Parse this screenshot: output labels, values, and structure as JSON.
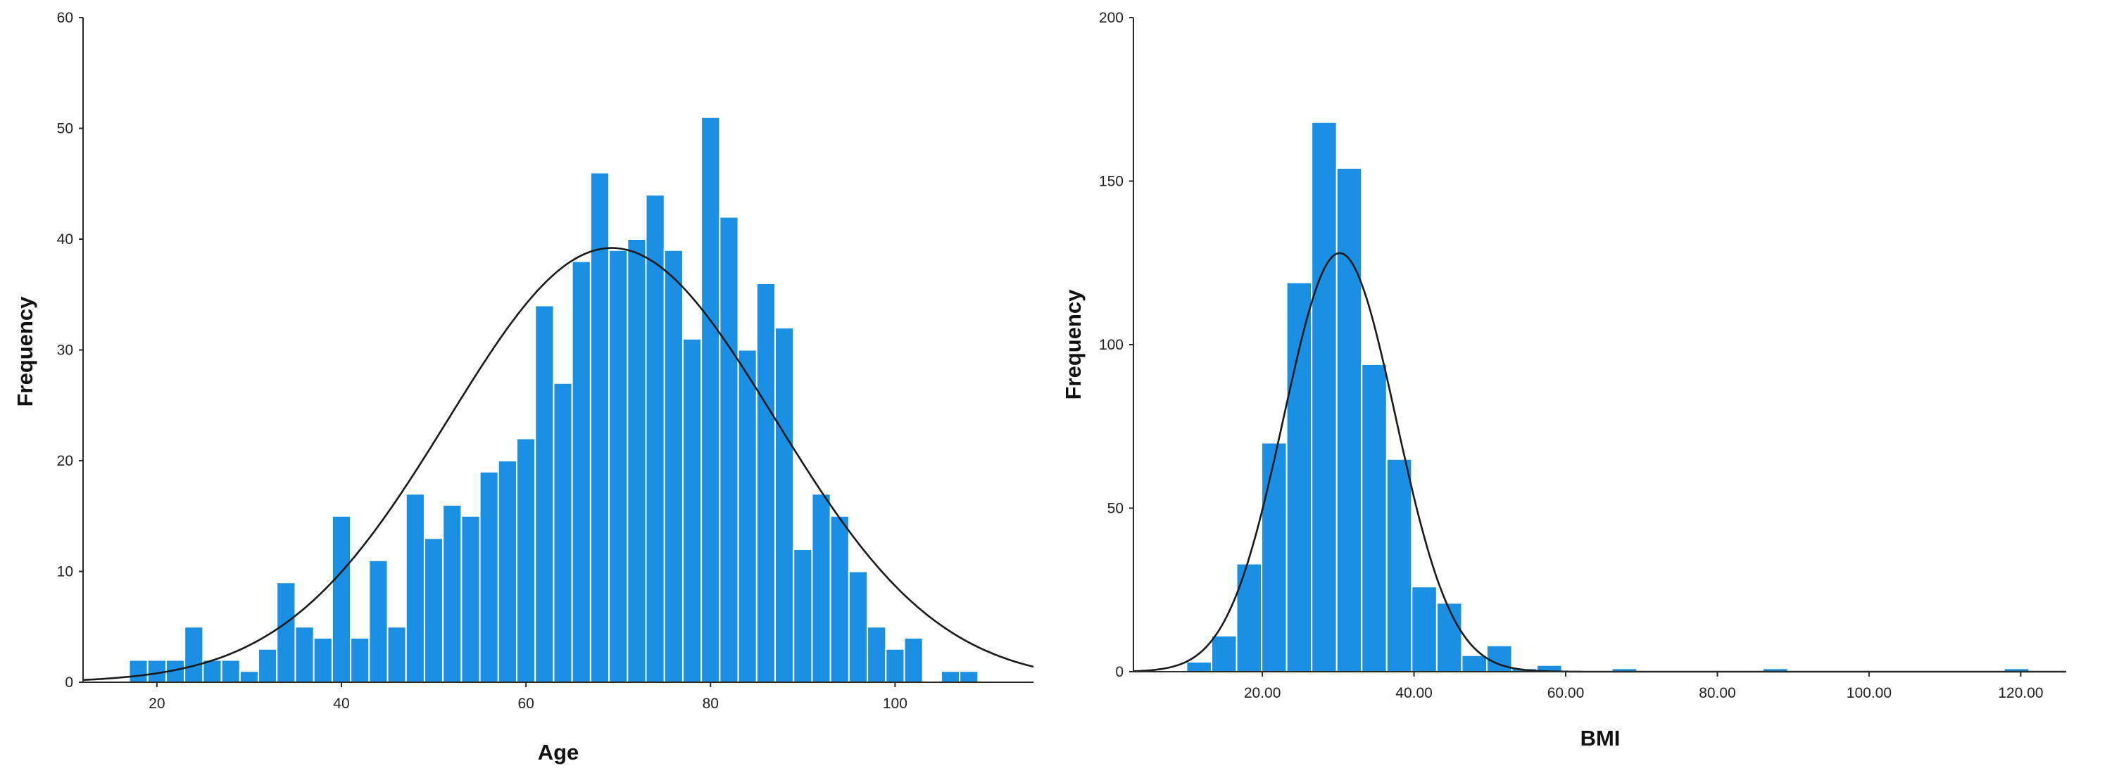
{
  "colors": {
    "bar": "#1a8fe3",
    "curve": "#1a1a1a",
    "axis": "#2b2b2b"
  },
  "chart_data": [
    {
      "type": "bar",
      "xlabel": "Age",
      "ylabel": "Frequency",
      "xlim": [
        12,
        115
      ],
      "ylim": [
        0,
        60
      ],
      "x_ticks": [
        20,
        40,
        60,
        80,
        100
      ],
      "x_tick_labels": [
        "20",
        "40",
        "60",
        "80",
        "100"
      ],
      "y_ticks": [
        0,
        10,
        20,
        30,
        40,
        50,
        60
      ],
      "y_tick_labels": [
        "0",
        "10",
        "20",
        "30",
        "40",
        "50",
        "60"
      ],
      "bin_width": 2,
      "bins": [
        {
          "start": 17,
          "count": 2
        },
        {
          "start": 19,
          "count": 2
        },
        {
          "start": 21,
          "count": 2
        },
        {
          "start": 23,
          "count": 5
        },
        {
          "start": 25,
          "count": 2
        },
        {
          "start": 27,
          "count": 2
        },
        {
          "start": 29,
          "count": 1
        },
        {
          "start": 31,
          "count": 3
        },
        {
          "start": 33,
          "count": 9
        },
        {
          "start": 35,
          "count": 5
        },
        {
          "start": 37,
          "count": 4
        },
        {
          "start": 39,
          "count": 15
        },
        {
          "start": 41,
          "count": 4
        },
        {
          "start": 43,
          "count": 11
        },
        {
          "start": 45,
          "count": 5
        },
        {
          "start": 47,
          "count": 17
        },
        {
          "start": 49,
          "count": 13
        },
        {
          "start": 51,
          "count": 16
        },
        {
          "start": 53,
          "count": 15
        },
        {
          "start": 55,
          "count": 19
        },
        {
          "start": 57,
          "count": 20
        },
        {
          "start": 59,
          "count": 22
        },
        {
          "start": 61,
          "count": 34
        },
        {
          "start": 63,
          "count": 27
        },
        {
          "start": 65,
          "count": 38
        },
        {
          "start": 67,
          "count": 46
        },
        {
          "start": 69,
          "count": 39
        },
        {
          "start": 71,
          "count": 40
        },
        {
          "start": 73,
          "count": 44
        },
        {
          "start": 75,
          "count": 39
        },
        {
          "start": 77,
          "count": 31
        },
        {
          "start": 79,
          "count": 51
        },
        {
          "start": 81,
          "count": 42
        },
        {
          "start": 83,
          "count": 30
        },
        {
          "start": 85,
          "count": 36
        },
        {
          "start": 87,
          "count": 32
        },
        {
          "start": 89,
          "count": 12
        },
        {
          "start": 91,
          "count": 17
        },
        {
          "start": 93,
          "count": 15
        },
        {
          "start": 95,
          "count": 10
        },
        {
          "start": 97,
          "count": 5
        },
        {
          "start": 99,
          "count": 3
        },
        {
          "start": 101,
          "count": 4
        },
        {
          "start": 105,
          "count": 1
        },
        {
          "start": 107,
          "count": 1
        }
      ],
      "normal_curve": {
        "mean": 69.3,
        "sd": 17.7,
        "peak": 39.2
      }
    },
    {
      "type": "bar",
      "xlabel": "BMI",
      "ylabel": "Frequency",
      "xlim": [
        3,
        126
      ],
      "ylim": [
        0,
        200
      ],
      "x_ticks": [
        20,
        40,
        60,
        80,
        100,
        120
      ],
      "x_tick_labels": [
        "20.00",
        "40.00",
        "60.00",
        "80.00",
        "100.00",
        "120.00"
      ],
      "y_ticks": [
        0,
        50,
        100,
        150,
        200
      ],
      "y_tick_labels": [
        "0",
        "50",
        "100",
        "150",
        "200"
      ],
      "bin_width": 3.3,
      "bins": [
        {
          "start": 10.0,
          "count": 3
        },
        {
          "start": 13.3,
          "count": 11
        },
        {
          "start": 16.6,
          "count": 33
        },
        {
          "start": 19.9,
          "count": 70
        },
        {
          "start": 23.2,
          "count": 119
        },
        {
          "start": 26.5,
          "count": 168
        },
        {
          "start": 29.8,
          "count": 154
        },
        {
          "start": 33.1,
          "count": 94
        },
        {
          "start": 36.4,
          "count": 65
        },
        {
          "start": 39.7,
          "count": 26
        },
        {
          "start": 43.0,
          "count": 21
        },
        {
          "start": 46.3,
          "count": 5
        },
        {
          "start": 49.6,
          "count": 8
        },
        {
          "start": 52.9,
          "count": 1
        },
        {
          "start": 56.2,
          "count": 2
        },
        {
          "start": 66.1,
          "count": 1
        },
        {
          "start": 86.0,
          "count": 1
        },
        {
          "start": 117.8,
          "count": 1
        }
      ],
      "normal_curve": {
        "mean": 30.2,
        "sd": 7.4,
        "peak": 128
      }
    }
  ]
}
